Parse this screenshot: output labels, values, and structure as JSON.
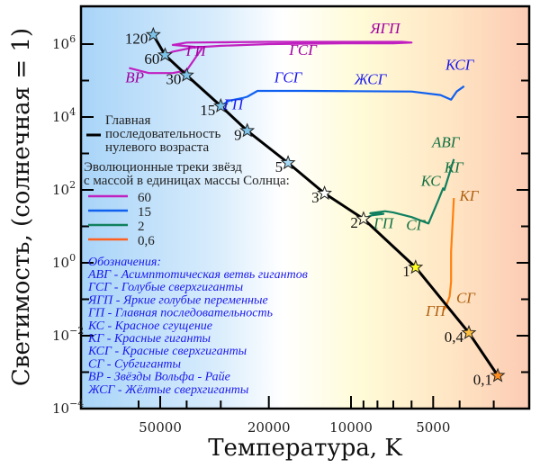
{
  "chart_data": {
    "type": "scatter",
    "title": "",
    "xlabel": "Температура, K",
    "ylabel": "Светимость, (солнечная = 1)",
    "x_scale": "log-reversed",
    "y_scale": "log",
    "xlim": [
      100000,
      2700
    ],
    "ylim": [
      0.0001,
      10000000
    ],
    "x_ticks": [
      {
        "value": 50000,
        "label": "50000"
      },
      {
        "value": 20000,
        "label": "20000"
      },
      {
        "value": 10000,
        "label": "10000"
      },
      {
        "value": 5000,
        "label": "5000"
      }
    ],
    "x_minor_ticks": [
      60000,
      40000,
      30000,
      9000,
      8000,
      7000,
      6000,
      4000,
      3000
    ],
    "y_ticks": [
      {
        "value": 1000000,
        "label": "10",
        "exp": "6"
      },
      {
        "value": 10000,
        "label": "10",
        "exp": "4"
      },
      {
        "value": 100,
        "label": "10",
        "exp": "2"
      },
      {
        "value": 1,
        "label": "10",
        "exp": "0"
      },
      {
        "value": 0.01,
        "label": "10",
        "exp": "−2"
      },
      {
        "value": 0.0001,
        "label": "10",
        "exp": "−4"
      }
    ],
    "y_minor_ticks": [
      100000,
      1000,
      10,
      0.1,
      0.001
    ],
    "background_gradient": [
      "#a8d4f8",
      "#d8ecfc",
      "#ffffff",
      "#fffbd8",
      "#ffe6c4",
      "#fccbb4"
    ],
    "main_sequence": {
      "name": "Главная последовательность нулевого возраста",
      "color": "#000000",
      "points": [
        {
          "mass": "120",
          "T": 53000,
          "L": 1800000,
          "star_color": "#7ec4ea"
        },
        {
          "mass": "60",
          "T": 48000,
          "L": 500000,
          "star_color": "#7ec4ea"
        },
        {
          "mass": "30",
          "T": 40000,
          "L": 140000,
          "star_color": "#7ec4ea"
        },
        {
          "mass": "15",
          "T": 30000,
          "L": 20000,
          "star_color": "#7ec4ea"
        },
        {
          "mass": "9",
          "T": 24000,
          "L": 4200,
          "star_color": "#7ec4ea"
        },
        {
          "mass": "5",
          "T": 17000,
          "L": 550,
          "star_color": "#a8d8f2"
        },
        {
          "mass": "3",
          "T": 12500,
          "L": 80,
          "star_color": "#ffffff"
        },
        {
          "mass": "2",
          "T": 9000,
          "L": 16,
          "star_color": "#fffbe0"
        },
        {
          "mass": "1",
          "T": 5800,
          "L": 0.75,
          "star_color": "#ffff20"
        },
        {
          "mass": "0,4",
          "T": 3700,
          "L": 0.012,
          "star_color": "#ffc040"
        },
        {
          "mass": "0,1",
          "T": 2900,
          "L": 0.0008,
          "star_color": "#ff8c20"
        }
      ]
    },
    "series": [
      {
        "name": "60",
        "color": "#c020c0",
        "label_color": "#a000a0",
        "points": [
          [
            48000,
            500000
          ],
          [
            45000,
            620000
          ],
          [
            38000,
            800000
          ],
          [
            30000,
            900000
          ],
          [
            20000,
            1000000
          ],
          [
            10000,
            1050000
          ],
          [
            7000,
            1050000
          ],
          [
            6000,
            1100000
          ],
          [
            6500,
            1150000
          ],
          [
            10000,
            1150000
          ],
          [
            20000,
            1150000
          ],
          [
            40000,
            1100000
          ],
          [
            45000,
            950000
          ],
          [
            35000,
            800000
          ],
          [
            40000,
            190000
          ],
          [
            45000,
            160000
          ],
          [
            55000,
            160000
          ],
          [
            65000,
            220000
          ]
        ],
        "labels": [
          {
            "text": "ГП",
            "T": 37000,
            "L": 480000
          },
          {
            "text": "ГСГ",
            "T": 15000,
            "L": 500000
          },
          {
            "text": "ЯГП",
            "T": 7500,
            "L": 2000000
          },
          {
            "text": "ВР",
            "T": 62000,
            "L": 90000
          }
        ]
      },
      {
        "name": "15",
        "color": "#1060f0",
        "label_color": "#1a1aee",
        "points": [
          [
            30000,
            20000
          ],
          [
            28000,
            28000
          ],
          [
            25000,
            33000
          ],
          [
            24000,
            36000
          ],
          [
            22000,
            52000
          ],
          [
            15000,
            52000
          ],
          [
            10000,
            51000
          ],
          [
            6000,
            50000
          ],
          [
            4700,
            40000
          ],
          [
            4300,
            30000
          ],
          [
            4100,
            50000
          ],
          [
            3850,
            70000
          ]
        ],
        "labels": [
          {
            "text": "ГП",
            "T": 27000,
            "L": 16000
          },
          {
            "text": "ГСГ",
            "T": 17000,
            "L": 90000
          },
          {
            "text": "ЖСГ",
            "T": 8500,
            "L": 80000
          },
          {
            "text": "КСГ",
            "T": 4000,
            "L": 200000
          }
        ]
      },
      {
        "name": "2",
        "color": "#108060",
        "label_color": "#107040",
        "points": [
          [
            9000,
            16
          ],
          [
            8400,
            20
          ],
          [
            7600,
            22
          ],
          [
            8500,
            23
          ],
          [
            7500,
            26
          ],
          [
            7000,
            24
          ],
          [
            6000,
            18
          ],
          [
            5200,
            12
          ],
          [
            4800,
            50
          ],
          [
            4600,
            110
          ],
          [
            4550,
            100
          ],
          [
            4200,
            700
          ]
        ],
        "labels": [
          {
            "text": "ГП",
            "T": 7600,
            "L": 9
          },
          {
            "text": "СГ",
            "T": 5800,
            "L": 8
          },
          {
            "text": "КС",
            "T": 5100,
            "L": 130
          },
          {
            "text": "КГ",
            "T": 4200,
            "L": 300
          },
          {
            "text": "АВГ",
            "T": 4500,
            "L": 1500
          }
        ]
      },
      {
        "name": "0,6",
        "color": "#ff8010",
        "label_color": "#b06010",
        "points": [
          [
            4600,
            0.05
          ],
          [
            4500,
            0.06
          ],
          [
            4350,
            0.12
          ],
          [
            4300,
            0.3
          ],
          [
            4300,
            2
          ],
          [
            4200,
            60
          ]
        ],
        "labels": [
          {
            "text": "ГП",
            "T": 4900,
            "L": 0.035
          },
          {
            "text": "СГ",
            "T": 3800,
            "L": 0.08
          },
          {
            "text": "КГ",
            "T": 3700,
            "L": 50
          }
        ]
      }
    ],
    "legend": {
      "main_sequence_label": [
        "Главная",
        "последовательность",
        "нулевого возраста"
      ],
      "tracks_title": [
        "Эволюционные треки звёзд",
        "с массой в единицах массы Солнца:"
      ],
      "entries": [
        {
          "label": "60",
          "color": "#c020c0"
        },
        {
          "label": "15",
          "color": "#1060f0"
        },
        {
          "label": "2",
          "color": "#108060"
        },
        {
          "label": "0,6",
          "color": "#ff6020"
        }
      ],
      "placement": "left"
    },
    "abbreviations": {
      "title": "Обозначения:",
      "items": [
        "АВГ - Асимптотическая ветвь гигантов",
        "ГСГ - Голубые сверхгиганты",
        "ЯГП - Яркие голубые переменные",
        "ГП - Главная последовательность",
        "КС - Красное сгущение",
        "КГ - Красные гиганты",
        "КСГ - Красные сверхгиганты",
        "СГ - Субгиганты",
        "ВР - Звёзды Вольфа - Райе",
        "ЖСГ - Жёлтые сверхгиганты"
      ]
    }
  }
}
